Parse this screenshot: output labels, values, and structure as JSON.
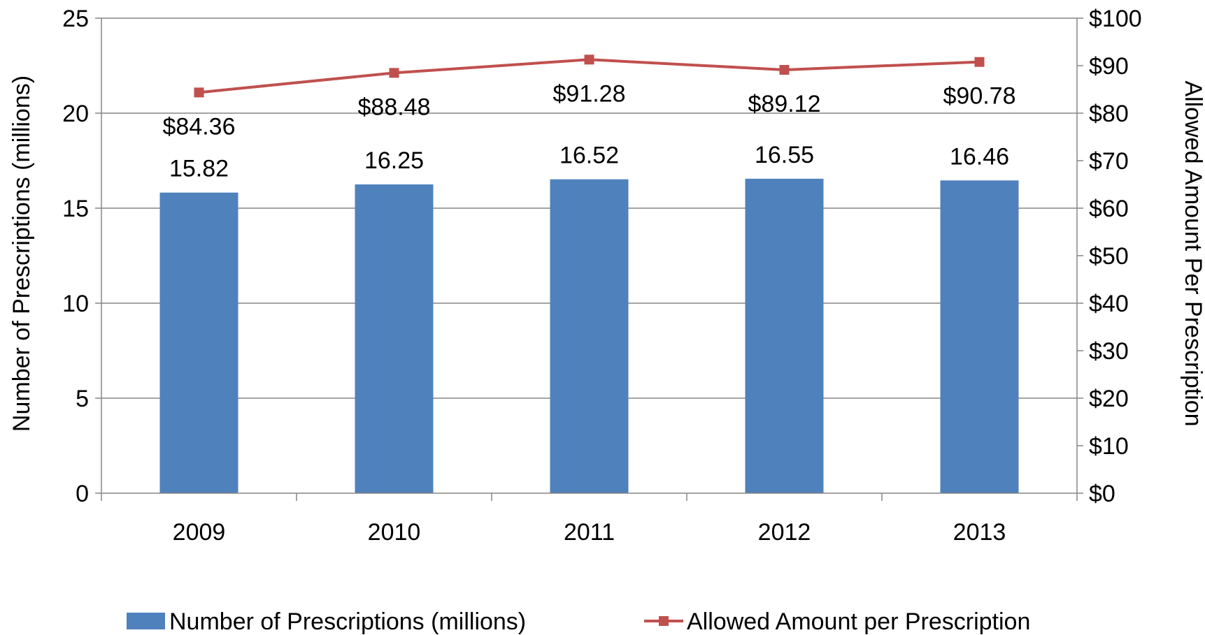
{
  "chart_data": {
    "type": "bar",
    "categories": [
      "2009",
      "2010",
      "2011",
      "2012",
      "2013"
    ],
    "series": [
      {
        "name": "Number of Prescriptions (millions)",
        "type": "bar",
        "axis": "left",
        "color": "#4F81BD",
        "values": [
          15.82,
          16.25,
          16.52,
          16.55,
          16.46
        ],
        "labels": [
          "15.82",
          "16.25",
          "16.52",
          "16.55",
          "16.46"
        ]
      },
      {
        "name": "Allowed Amount per Prescription",
        "type": "line",
        "axis": "right",
        "color": "#C0504D",
        "marker": "square",
        "values": [
          84.36,
          88.48,
          91.28,
          89.12,
          90.78
        ],
        "labels": [
          "$84.36",
          "$88.48",
          "$91.28",
          "$89.12",
          "$90.78"
        ]
      }
    ],
    "left_axis": {
      "label": "Number of Prescriptions (millions)",
      "ylim": [
        0,
        25
      ],
      "ticks": [
        "0",
        "5",
        "10",
        "15",
        "20",
        "25"
      ]
    },
    "right_axis": {
      "label": "Allowed Amount Per Prescription",
      "ylim": [
        0,
        100
      ],
      "ticks": [
        "$0",
        "$10",
        "$20",
        "$30",
        "$40",
        "$50",
        "$60",
        "$70",
        "$80",
        "$90",
        "$100"
      ]
    },
    "grid": true,
    "legend_position": "bottom"
  }
}
